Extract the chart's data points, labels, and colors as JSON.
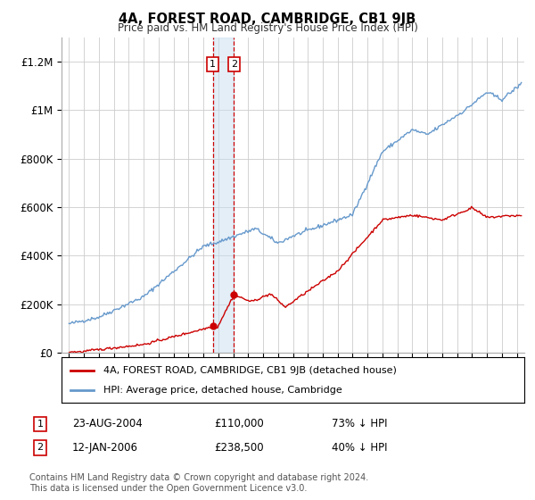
{
  "title": "4A, FOREST ROAD, CAMBRIDGE, CB1 9JB",
  "subtitle": "Price paid vs. HM Land Registry's House Price Index (HPI)",
  "legend_property": "4A, FOREST ROAD, CAMBRIDGE, CB1 9JB (detached house)",
  "legend_hpi": "HPI: Average price, detached house, Cambridge",
  "transaction1_date": "23-AUG-2004",
  "transaction1_price": 110000,
  "transaction1_label": "73% ↓ HPI",
  "transaction1_year": 2004.64,
  "transaction2_date": "12-JAN-2006",
  "transaction2_price": 238500,
  "transaction2_label": "40% ↓ HPI",
  "transaction2_year": 2006.04,
  "footer": "Contains HM Land Registry data © Crown copyright and database right 2024.\nThis data is licensed under the Open Government Licence v3.0.",
  "ylim": [
    0,
    1300000
  ],
  "yticks": [
    0,
    200000,
    400000,
    600000,
    800000,
    1000000,
    1200000
  ],
  "ytick_labels": [
    "£0",
    "£200K",
    "£400K",
    "£600K",
    "£800K",
    "£1M",
    "£1.2M"
  ],
  "xlim_start": 1994.5,
  "xlim_end": 2025.5,
  "property_color": "#cc0000",
  "hpi_color": "#6699cc",
  "background_color": "#ffffff",
  "grid_color": "#cccccc",
  "marker_box_color": "#cc0000",
  "shade_color": "#c8dff0"
}
